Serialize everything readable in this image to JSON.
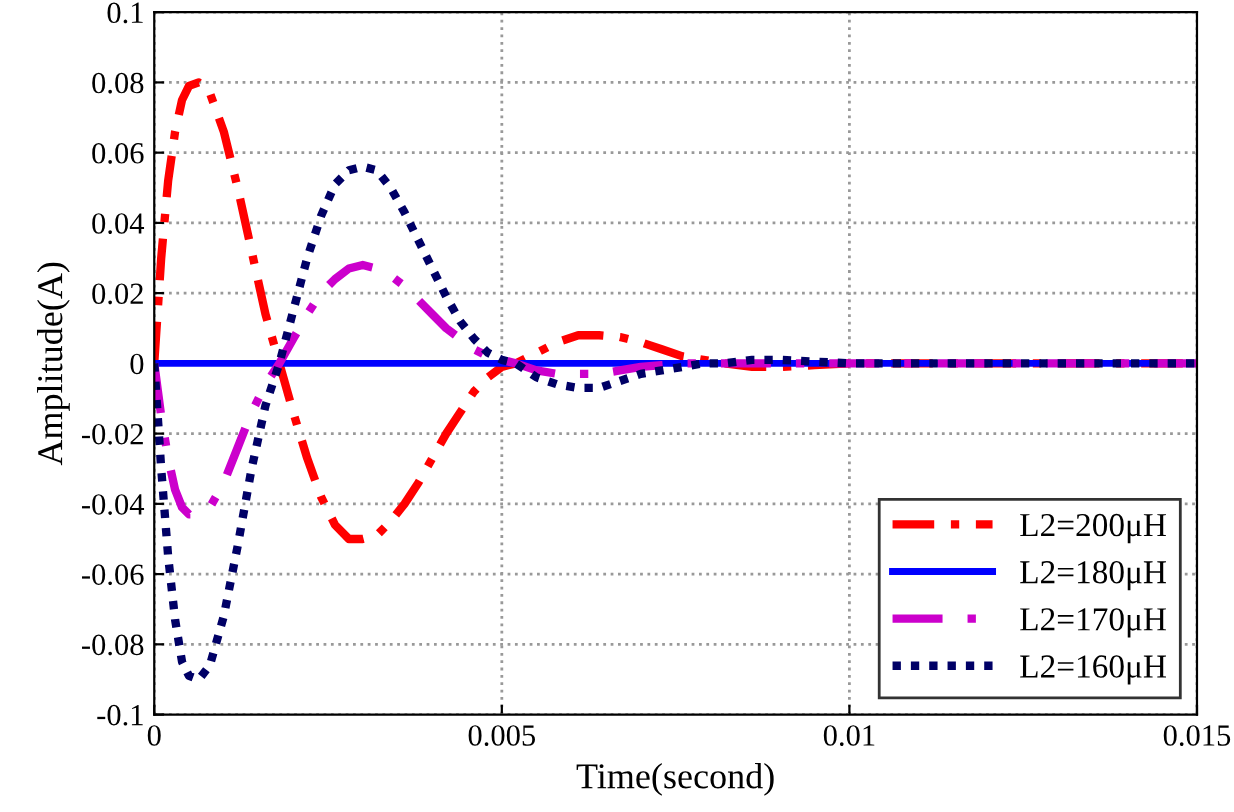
{
  "chart_data": {
    "type": "line",
    "xlabel": "Time(second)",
    "ylabel": "Amplitude(A)",
    "x": [
      0,
      0.0001,
      0.0002,
      0.0003,
      0.0004,
      0.0005,
      0.00064,
      0.0008,
      0.001,
      0.0012,
      0.0014,
      0.0016,
      0.0018,
      0.002,
      0.0022,
      0.0024,
      0.0026,
      0.0028,
      0.003,
      0.0032,
      0.0034,
      0.0036,
      0.0038,
      0.004,
      0.0042,
      0.0044,
      0.0046,
      0.0048,
      0.005,
      0.0052,
      0.0055,
      0.0058,
      0.0061,
      0.0064,
      0.0067,
      0.007,
      0.0073,
      0.0076,
      0.0079,
      0.0082,
      0.0086,
      0.009,
      0.0095,
      0.01,
      0.011,
      0.012,
      0.013,
      0.014,
      0.015
    ],
    "series": [
      {
        "name": "L2=200μH",
        "color": "#ff0000",
        "line_style": "dashdot",
        "values": [
          0,
          0.03,
          0.052,
          0.066,
          0.075,
          0.079,
          0.08,
          0.077,
          0.066,
          0.05,
          0.032,
          0.014,
          0,
          -0.014,
          -0.027,
          -0.038,
          -0.046,
          -0.05,
          -0.05,
          -0.049,
          -0.045,
          -0.04,
          -0.034,
          -0.027,
          -0.02,
          -0.014,
          -0.008,
          -0.004,
          -0.001,
          0,
          0.003,
          0.006,
          0.008,
          0.008,
          0.0075,
          0.006,
          0.004,
          0.002,
          0.001,
          0,
          -0.001,
          -0.001,
          -0.0005,
          0,
          0,
          0,
          0,
          0,
          0
        ]
      },
      {
        "name": "L2=180μH",
        "color": "#0000ff",
        "line_style": "solid",
        "x": [
          0,
          0.015
        ],
        "values": [
          0,
          0
        ]
      },
      {
        "name": "L2=170μH",
        "color": "#cc00cc",
        "line_style": "dashed",
        "values": [
          0,
          -0.015,
          -0.027,
          -0.036,
          -0.041,
          -0.043,
          -0.043,
          -0.041,
          -0.034,
          -0.024,
          -0.014,
          -0.006,
          0,
          0.007,
          0.014,
          0.02,
          0.024,
          0.027,
          0.028,
          0.027,
          0.025,
          0.022,
          0.018,
          0.014,
          0.01,
          0.007,
          0.004,
          0.002,
          0.001,
          0,
          -0.002,
          -0.003,
          -0.003,
          -0.003,
          -0.002,
          -0.001,
          -0.0005,
          0,
          0,
          0,
          0,
          0,
          0,
          0,
          0,
          0,
          0,
          0,
          0
        ]
      },
      {
        "name": "L2=160μH",
        "color": "#000066",
        "line_style": "dotted",
        "values": [
          0,
          -0.03,
          -0.055,
          -0.073,
          -0.085,
          -0.089,
          -0.09,
          -0.086,
          -0.072,
          -0.052,
          -0.03,
          -0.012,
          0,
          0.015,
          0.03,
          0.042,
          0.051,
          0.055,
          0.056,
          0.055,
          0.05,
          0.043,
          0.035,
          0.027,
          0.019,
          0.012,
          0.007,
          0.003,
          0.001,
          0,
          -0.004,
          -0.006,
          -0.007,
          -0.007,
          -0.005,
          -0.003,
          -0.002,
          -0.001,
          0,
          0,
          0.001,
          0.001,
          0.0005,
          0,
          0,
          0,
          0,
          0,
          0
        ]
      }
    ],
    "xlim": [
      0,
      0.015
    ],
    "xticks": [
      0,
      0.005,
      0.01,
      0.015
    ],
    "ylim": [
      -0.1,
      0.1
    ],
    "yticks": [
      -0.1,
      -0.08,
      -0.06,
      -0.04,
      -0.02,
      0,
      0.02,
      0.04,
      0.06,
      0.08,
      0.1
    ],
    "grid": true,
    "legend": "bottom right"
  }
}
